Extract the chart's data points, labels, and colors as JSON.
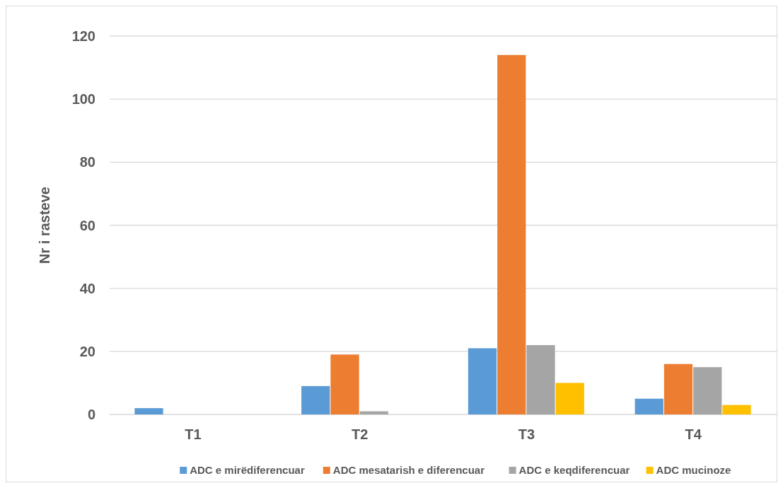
{
  "chart_data": {
    "type": "bar",
    "ylabel": "Nr i rasteve",
    "categories": [
      "T1",
      "T2",
      "T3",
      "T4"
    ],
    "series": [
      {
        "name": "ADC e mirëdiferencuar",
        "color": "#5b9bd5",
        "values": [
          2,
          9,
          21,
          5
        ]
      },
      {
        "name": "ADC mesatarish e diferencuar",
        "color": "#ed7d31",
        "values": [
          0,
          19,
          114,
          16
        ]
      },
      {
        "name": "ADC e keqdiferencuar",
        "color": "#a5a5a5",
        "values": [
          0,
          1,
          22,
          15
        ]
      },
      {
        "name": "ADC mucinoze",
        "color": "#ffc000",
        "values": [
          0,
          0,
          10,
          3
        ]
      }
    ],
    "ylim": [
      0,
      120
    ],
    "yticks": [
      0,
      20,
      40,
      60,
      80,
      100,
      120
    ],
    "grid": "y",
    "legend": "bottom"
  }
}
